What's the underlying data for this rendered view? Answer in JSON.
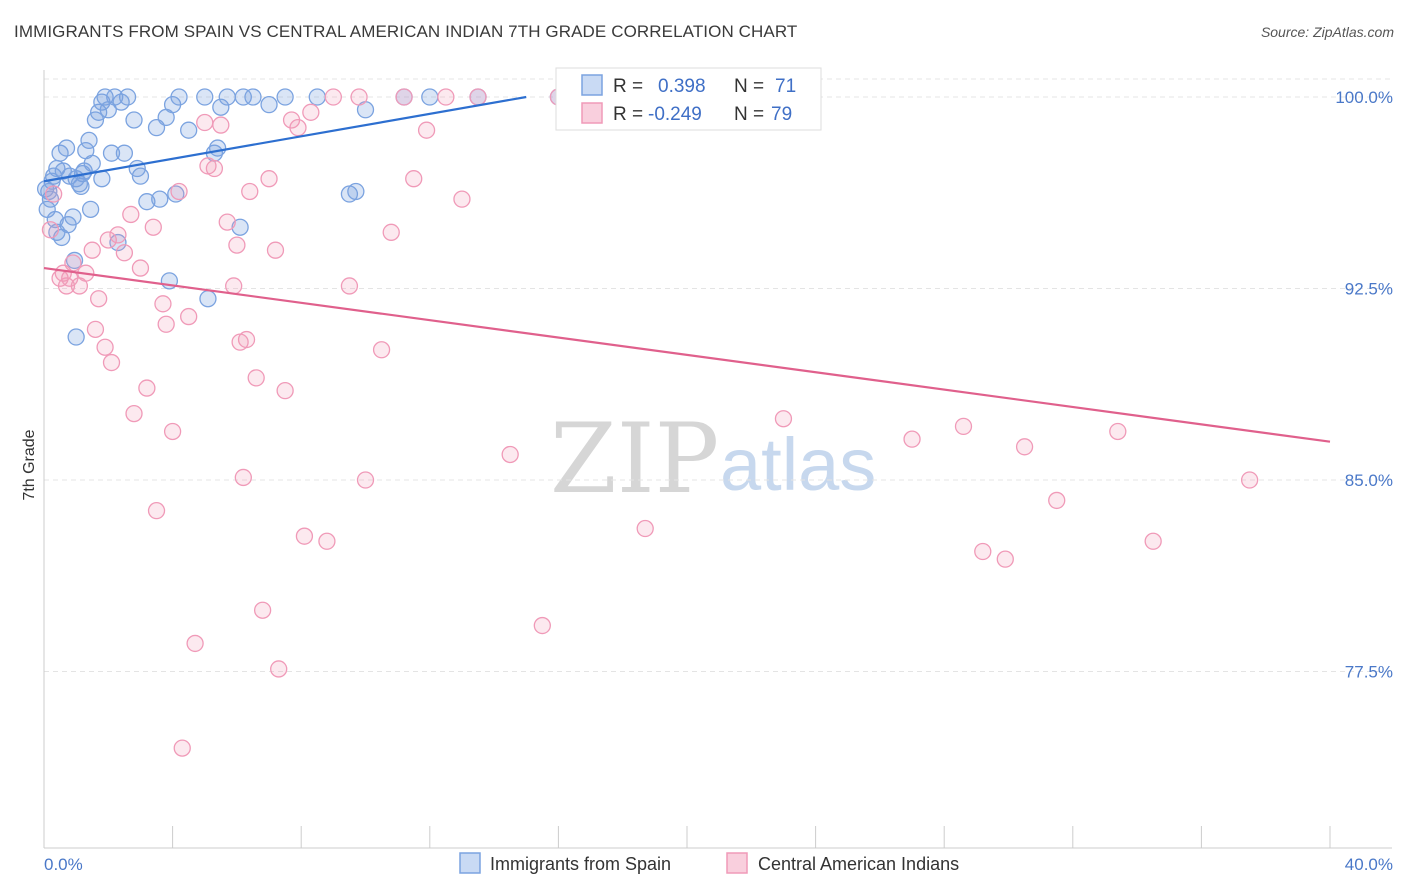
{
  "header": {
    "title": "IMMIGRANTS FROM SPAIN VS CENTRAL AMERICAN INDIAN 7TH GRADE CORRELATION CHART",
    "source": "Source: ZipAtlas.com"
  },
  "watermark": {
    "zip": "ZIP",
    "atlas": "atlas"
  },
  "chart_data": {
    "type": "scatter",
    "title": "IMMIGRANTS FROM SPAIN VS CENTRAL AMERICAN INDIAN 7TH GRADE CORRELATION CHART",
    "xlabel": "",
    "ylabel": "7th Grade",
    "xlim": [
      0,
      40
    ],
    "ylim": [
      71.8,
      101.3
    ],
    "x_tick_labels": {
      "left": "0.0%",
      "right": "40.0%"
    },
    "y_ticks": [
      {
        "value": 100.0,
        "label": "100.0%"
      },
      {
        "value": 92.5,
        "label": "92.5%"
      },
      {
        "value": 85.0,
        "label": "85.0%"
      },
      {
        "value": 77.5,
        "label": "77.5%"
      }
    ],
    "grid": true,
    "legend_position": "top-center",
    "series": [
      {
        "name": "Immigrants from Spain",
        "color": "#7ba3e0",
        "line_color": "#2d6fd0",
        "R": "0.398",
        "N": "71",
        "trend": {
          "x": [
            0.0,
            15.0
          ],
          "y": [
            96.7,
            100.0
          ]
        },
        "points": [
          [
            0.1,
            95.6
          ],
          [
            0.2,
            96.0
          ],
          [
            0.3,
            96.9
          ],
          [
            0.4,
            97.2
          ],
          [
            0.5,
            97.8
          ],
          [
            0.6,
            97.1
          ],
          [
            0.7,
            98.0
          ],
          [
            0.8,
            96.9
          ],
          [
            0.9,
            95.3
          ],
          [
            0.95,
            93.6
          ],
          [
            1.0,
            96.8
          ],
          [
            1.1,
            96.6
          ],
          [
            1.2,
            97.0
          ],
          [
            1.3,
            97.9
          ],
          [
            1.4,
            98.3
          ],
          [
            1.5,
            97.4
          ],
          [
            1.6,
            99.1
          ],
          [
            1.7,
            99.4
          ],
          [
            1.8,
            99.8
          ],
          [
            1.9,
            100.0
          ],
          [
            2.0,
            99.5
          ],
          [
            2.2,
            100.0
          ],
          [
            2.4,
            99.8
          ],
          [
            2.6,
            100.0
          ],
          [
            2.8,
            99.1
          ],
          [
            3.0,
            96.9
          ],
          [
            3.2,
            95.9
          ],
          [
            3.5,
            98.8
          ],
          [
            3.8,
            99.2
          ],
          [
            4.0,
            99.7
          ],
          [
            4.2,
            100.0
          ],
          [
            4.5,
            98.7
          ],
          [
            5.0,
            100.0
          ],
          [
            5.5,
            99.6
          ],
          [
            5.7,
            100.0
          ],
          [
            6.2,
            100.0
          ],
          [
            6.5,
            100.0
          ],
          [
            7.0,
            99.7
          ],
          [
            8.5,
            100.0
          ],
          [
            9.5,
            96.2
          ],
          [
            10.0,
            99.5
          ],
          [
            11.2,
            100.0
          ],
          [
            12.0,
            100.0
          ],
          [
            16.5,
            100.0
          ],
          [
            0.15,
            96.3
          ],
          [
            0.35,
            95.2
          ],
          [
            0.55,
            94.5
          ],
          [
            0.75,
            95.0
          ],
          [
            1.15,
            96.5
          ],
          [
            1.45,
            95.6
          ],
          [
            1.8,
            96.8
          ],
          [
            2.1,
            97.8
          ],
          [
            2.3,
            94.3
          ],
          [
            2.5,
            97.8
          ],
          [
            2.9,
            97.2
          ],
          [
            3.6,
            96.0
          ],
          [
            3.9,
            92.8
          ],
          [
            4.1,
            96.2
          ],
          [
            5.1,
            92.1
          ],
          [
            5.3,
            97.8
          ],
          [
            5.4,
            98.0
          ],
          [
            6.1,
            94.9
          ],
          [
            7.5,
            100.0
          ],
          [
            9.7,
            96.3
          ],
          [
            13.5,
            100.0
          ],
          [
            16.0,
            100.0
          ],
          [
            0.25,
            96.7
          ],
          [
            1.0,
            90.6
          ],
          [
            0.4,
            94.7
          ],
          [
            1.25,
            97.1
          ],
          [
            0.05,
            96.4
          ]
        ]
      },
      {
        "name": "Central American Indians",
        "color": "#f09ab8",
        "line_color": "#e0608c",
        "R": "-0.249",
        "N": "79",
        "trend": {
          "x": [
            0.0,
            40.0
          ],
          "y": [
            93.3,
            86.5
          ]
        },
        "points": [
          [
            0.2,
            94.8
          ],
          [
            0.3,
            96.2
          ],
          [
            0.5,
            92.9
          ],
          [
            0.6,
            93.1
          ],
          [
            0.7,
            92.6
          ],
          [
            0.9,
            93.5
          ],
          [
            1.1,
            92.6
          ],
          [
            1.3,
            93.1
          ],
          [
            1.5,
            94.0
          ],
          [
            1.6,
            90.9
          ],
          [
            1.7,
            92.1
          ],
          [
            1.9,
            90.2
          ],
          [
            2.1,
            89.6
          ],
          [
            2.3,
            94.6
          ],
          [
            2.5,
            93.9
          ],
          [
            2.7,
            95.4
          ],
          [
            2.8,
            87.6
          ],
          [
            3.0,
            93.3
          ],
          [
            3.2,
            88.6
          ],
          [
            3.4,
            94.9
          ],
          [
            3.5,
            83.8
          ],
          [
            3.7,
            91.9
          ],
          [
            3.8,
            91.1
          ],
          [
            4.0,
            86.9
          ],
          [
            4.2,
            96.3
          ],
          [
            4.3,
            74.5
          ],
          [
            4.5,
            91.4
          ],
          [
            4.7,
            78.6
          ],
          [
            5.0,
            99.0
          ],
          [
            5.1,
            97.3
          ],
          [
            5.3,
            97.2
          ],
          [
            5.5,
            98.9
          ],
          [
            5.7,
            95.1
          ],
          [
            5.9,
            92.6
          ],
          [
            6.0,
            94.2
          ],
          [
            6.2,
            85.1
          ],
          [
            6.3,
            90.5
          ],
          [
            6.4,
            96.3
          ],
          [
            6.6,
            89.0
          ],
          [
            6.8,
            79.9
          ],
          [
            7.0,
            96.8
          ],
          [
            7.2,
            94.0
          ],
          [
            7.3,
            77.6
          ],
          [
            7.5,
            88.5
          ],
          [
            7.7,
            99.1
          ],
          [
            7.9,
            98.8
          ],
          [
            8.1,
            82.8
          ],
          [
            8.3,
            99.4
          ],
          [
            8.8,
            82.6
          ],
          [
            9.0,
            100.0
          ],
          [
            9.5,
            92.6
          ],
          [
            9.8,
            100.0
          ],
          [
            10.0,
            85.0
          ],
          [
            10.5,
            90.1
          ],
          [
            10.8,
            94.7
          ],
          [
            11.2,
            100.0
          ],
          [
            11.5,
            96.8
          ],
          [
            11.9,
            98.7
          ],
          [
            12.5,
            100.0
          ],
          [
            13.0,
            96.0
          ],
          [
            13.5,
            100.0
          ],
          [
            14.5,
            86.0
          ],
          [
            15.5,
            79.3
          ],
          [
            16.0,
            100.0
          ],
          [
            17.0,
            100.0
          ],
          [
            18.7,
            83.1
          ],
          [
            23.0,
            87.4
          ],
          [
            27.0,
            86.6
          ],
          [
            28.6,
            87.1
          ],
          [
            29.2,
            82.2
          ],
          [
            29.9,
            81.9
          ],
          [
            30.5,
            86.3
          ],
          [
            31.5,
            84.2
          ],
          [
            33.4,
            86.9
          ],
          [
            34.5,
            82.6
          ],
          [
            37.5,
            85.0
          ],
          [
            0.8,
            92.9
          ],
          [
            2.0,
            94.4
          ],
          [
            6.1,
            90.4
          ]
        ]
      }
    ]
  },
  "legend": {
    "r_label": "R =",
    "n_label": "N ="
  }
}
